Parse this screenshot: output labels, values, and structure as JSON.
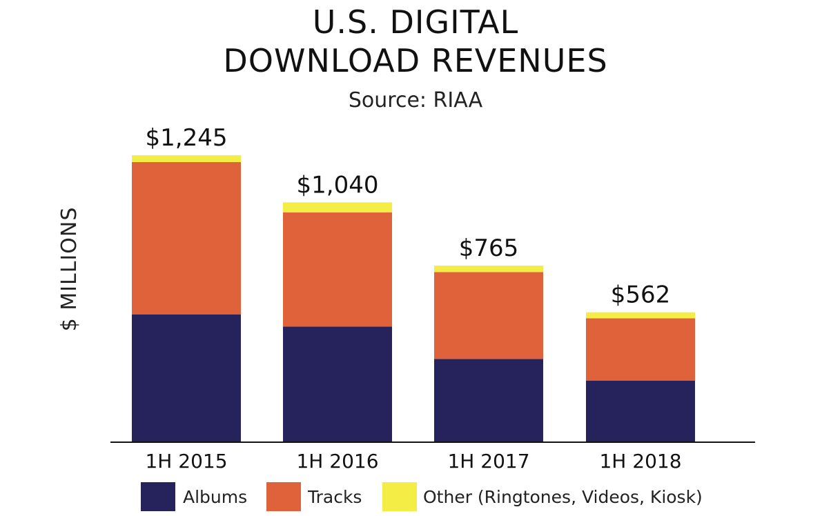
{
  "chart_data": {
    "type": "bar",
    "stacked": true,
    "title": [
      "U.S. DIGITAL",
      "DOWNLOAD REVENUES"
    ],
    "subtitle": "Source: RIAA",
    "xlabel": "",
    "ylabel": "$ MILLIONS",
    "categories": [
      "1H 2015",
      "1H 2016",
      "1H 2017",
      "1H 2018"
    ],
    "totals": [
      "$1,245",
      "$1,040",
      "$765",
      "$562"
    ],
    "ylim": [
      0,
      1300
    ],
    "grid": false,
    "legend_position": "bottom",
    "series": [
      {
        "name": "Albums",
        "color": "#26235c",
        "values": [
          553,
          500,
          359,
          265
        ]
      },
      {
        "name": "Tracks",
        "color": "#e0623a",
        "values": [
          662,
          496,
          378,
          271
        ]
      },
      {
        "name": "Other (Ringtones, Videos, Kiosk)",
        "color": "#f4ed45",
        "values": [
          30,
          44,
          28,
          26
        ]
      }
    ]
  }
}
